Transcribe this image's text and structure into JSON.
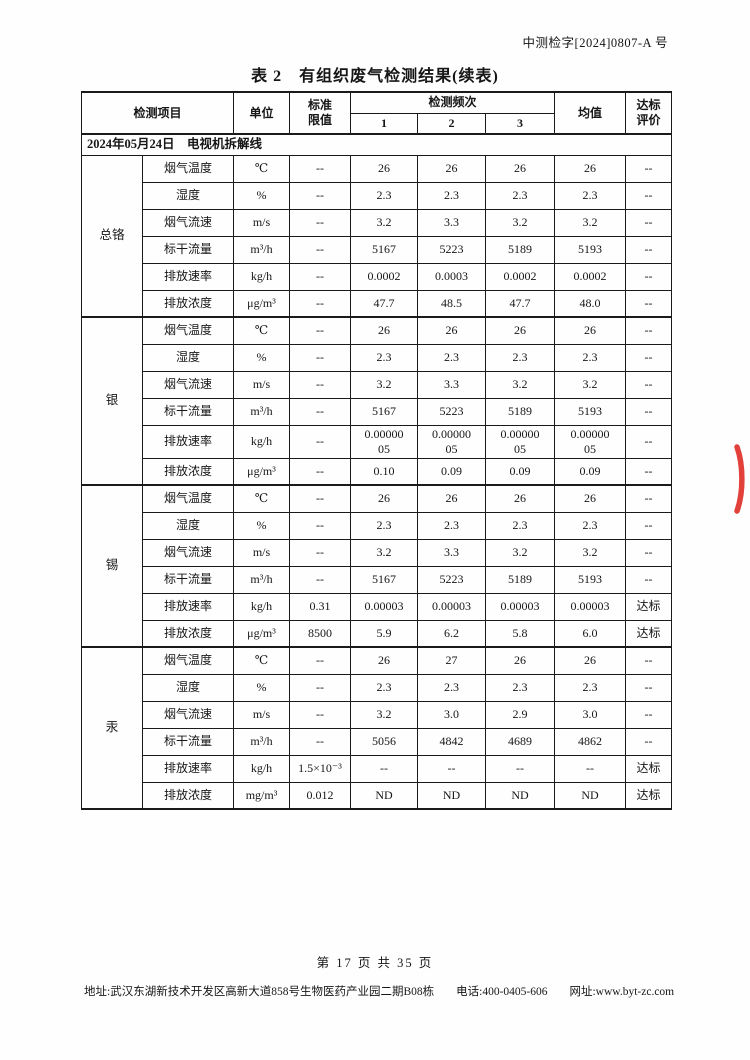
{
  "page": {
    "doc_number": "中测检字[2024]0807-A 号",
    "title": "表 2　有组织废气检测结果(续表)",
    "page_number": "第 17 页 共 35 页",
    "footer": {
      "address": "地址:武汉东湖新技术开发区高新大道858号生物医药产业园二期B08栋",
      "phone": "电话:400-0405-606",
      "website": "网址:www.byt-zc.com"
    }
  },
  "table": {
    "headers": {
      "item": "检测项目",
      "unit": "单位",
      "limit": "标准\n限值",
      "frequency": "检测频次",
      "freq_cols": [
        "1",
        "2",
        "3"
      ],
      "mean": "均值",
      "evaluation": "达标\n评价"
    },
    "date_line": "2024年05月24日　电视机拆解线",
    "groups": [
      {
        "name": "总铬",
        "rows": [
          {
            "param": "烟气温度",
            "unit": "℃",
            "limit": "--",
            "v1": "26",
            "v2": "26",
            "v3": "26",
            "mean": "26",
            "eval": "--"
          },
          {
            "param": "湿度",
            "unit": "%",
            "limit": "--",
            "v1": "2.3",
            "v2": "2.3",
            "v3": "2.3",
            "mean": "2.3",
            "eval": "--"
          },
          {
            "param": "烟气流速",
            "unit": "m/s",
            "limit": "--",
            "v1": "3.2",
            "v2": "3.3",
            "v3": "3.2",
            "mean": "3.2",
            "eval": "--"
          },
          {
            "param": "标干流量",
            "unit": "m³/h",
            "limit": "--",
            "v1": "5167",
            "v2": "5223",
            "v3": "5189",
            "mean": "5193",
            "eval": "--"
          },
          {
            "param": "排放速率",
            "unit": "kg/h",
            "limit": "--",
            "v1": "0.0002",
            "v2": "0.0003",
            "v3": "0.0002",
            "mean": "0.0002",
            "eval": "--"
          },
          {
            "param": "排放浓度",
            "unit": "μg/m³",
            "limit": "--",
            "v1": "47.7",
            "v2": "48.5",
            "v3": "47.7",
            "mean": "48.0",
            "eval": "--"
          }
        ]
      },
      {
        "name": "银",
        "rows": [
          {
            "param": "烟气温度",
            "unit": "℃",
            "limit": "--",
            "v1": "26",
            "v2": "26",
            "v3": "26",
            "mean": "26",
            "eval": "--"
          },
          {
            "param": "湿度",
            "unit": "%",
            "limit": "--",
            "v1": "2.3",
            "v2": "2.3",
            "v3": "2.3",
            "mean": "2.3",
            "eval": "--"
          },
          {
            "param": "烟气流速",
            "unit": "m/s",
            "limit": "--",
            "v1": "3.2",
            "v2": "3.3",
            "v3": "3.2",
            "mean": "3.2",
            "eval": "--"
          },
          {
            "param": "标干流量",
            "unit": "m³/h",
            "limit": "--",
            "v1": "5167",
            "v2": "5223",
            "v3": "5189",
            "mean": "5193",
            "eval": "--"
          },
          {
            "param": "排放速率",
            "unit": "kg/h",
            "limit": "--",
            "v1": "0.00000\n05",
            "v2": "0.00000\n05",
            "v3": "0.00000\n05",
            "mean": "0.00000\n05",
            "eval": "--"
          },
          {
            "param": "排放浓度",
            "unit": "μg/m³",
            "limit": "--",
            "v1": "0.10",
            "v2": "0.09",
            "v3": "0.09",
            "mean": "0.09",
            "eval": "--"
          }
        ]
      },
      {
        "name": "锡",
        "rows": [
          {
            "param": "烟气温度",
            "unit": "℃",
            "limit": "--",
            "v1": "26",
            "v2": "26",
            "v3": "26",
            "mean": "26",
            "eval": "--"
          },
          {
            "param": "湿度",
            "unit": "%",
            "limit": "--",
            "v1": "2.3",
            "v2": "2.3",
            "v3": "2.3",
            "mean": "2.3",
            "eval": "--"
          },
          {
            "param": "烟气流速",
            "unit": "m/s",
            "limit": "--",
            "v1": "3.2",
            "v2": "3.3",
            "v3": "3.2",
            "mean": "3.2",
            "eval": "--"
          },
          {
            "param": "标干流量",
            "unit": "m³/h",
            "limit": "--",
            "v1": "5167",
            "v2": "5223",
            "v3": "5189",
            "mean": "5193",
            "eval": "--"
          },
          {
            "param": "排放速率",
            "unit": "kg/h",
            "limit": "0.31",
            "v1": "0.00003",
            "v2": "0.00003",
            "v3": "0.00003",
            "mean": "0.00003",
            "eval": "达标"
          },
          {
            "param": "排放浓度",
            "unit": "μg/m³",
            "limit": "8500",
            "v1": "5.9",
            "v2": "6.2",
            "v3": "5.8",
            "mean": "6.0",
            "eval": "达标"
          }
        ]
      },
      {
        "name": "汞",
        "rows": [
          {
            "param": "烟气温度",
            "unit": "℃",
            "limit": "--",
            "v1": "26",
            "v2": "27",
            "v3": "26",
            "mean": "26",
            "eval": "--"
          },
          {
            "param": "湿度",
            "unit": "%",
            "limit": "--",
            "v1": "2.3",
            "v2": "2.3",
            "v3": "2.3",
            "mean": "2.3",
            "eval": "--"
          },
          {
            "param": "烟气流速",
            "unit": "m/s",
            "limit": "--",
            "v1": "3.2",
            "v2": "3.0",
            "v3": "2.9",
            "mean": "3.0",
            "eval": "--"
          },
          {
            "param": "标干流量",
            "unit": "m³/h",
            "limit": "--",
            "v1": "5056",
            "v2": "4842",
            "v3": "4689",
            "mean": "4862",
            "eval": "--"
          },
          {
            "param": "排放速率",
            "unit": "kg/h",
            "limit": "1.5×10⁻³",
            "v1": "--",
            "v2": "--",
            "v3": "--",
            "mean": "--",
            "eval": "达标"
          },
          {
            "param": "排放浓度",
            "unit": "mg/m³",
            "limit": "0.012",
            "v1": "ND",
            "v2": "ND",
            "v3": "ND",
            "mean": "ND",
            "eval": "达标"
          }
        ]
      }
    ]
  },
  "colors": {
    "stamp_red": "#e2403a",
    "border": "#1a1a1a",
    "text": "#161616"
  }
}
